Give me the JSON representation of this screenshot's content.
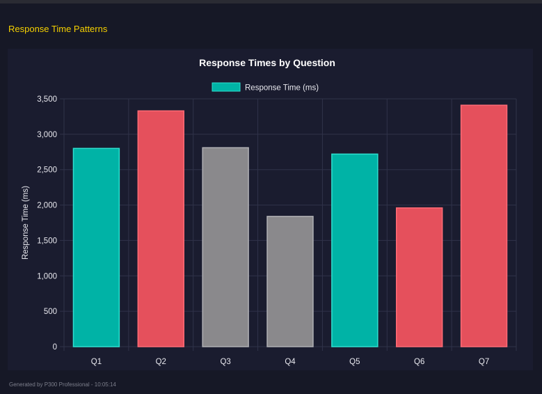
{
  "section_title": "Response Time Patterns",
  "footer": "Generated by P300 Professional - 10:05:14",
  "chart_data": {
    "type": "bar",
    "title": "Response Times by Question",
    "xlabel": "",
    "ylabel": "Response Time (ms)",
    "legend": {
      "label": "Response Time (ms)",
      "color": "#00b3a6",
      "position": "top"
    },
    "categories": [
      "Q1",
      "Q2",
      "Q3",
      "Q4",
      "Q5",
      "Q6",
      "Q7"
    ],
    "values": [
      2800,
      3330,
      2810,
      1840,
      2720,
      1960,
      3410
    ],
    "colors": [
      "#00b3a6",
      "#e5505c",
      "#8a898c",
      "#8a898c",
      "#00b3a6",
      "#e5505c",
      "#e5505c"
    ],
    "ylim": [
      0,
      3500
    ],
    "yticks": [
      "0",
      "500",
      "1,000",
      "1,500",
      "2,000",
      "2,500",
      "3,000",
      "3,500"
    ],
    "grid": true
  }
}
